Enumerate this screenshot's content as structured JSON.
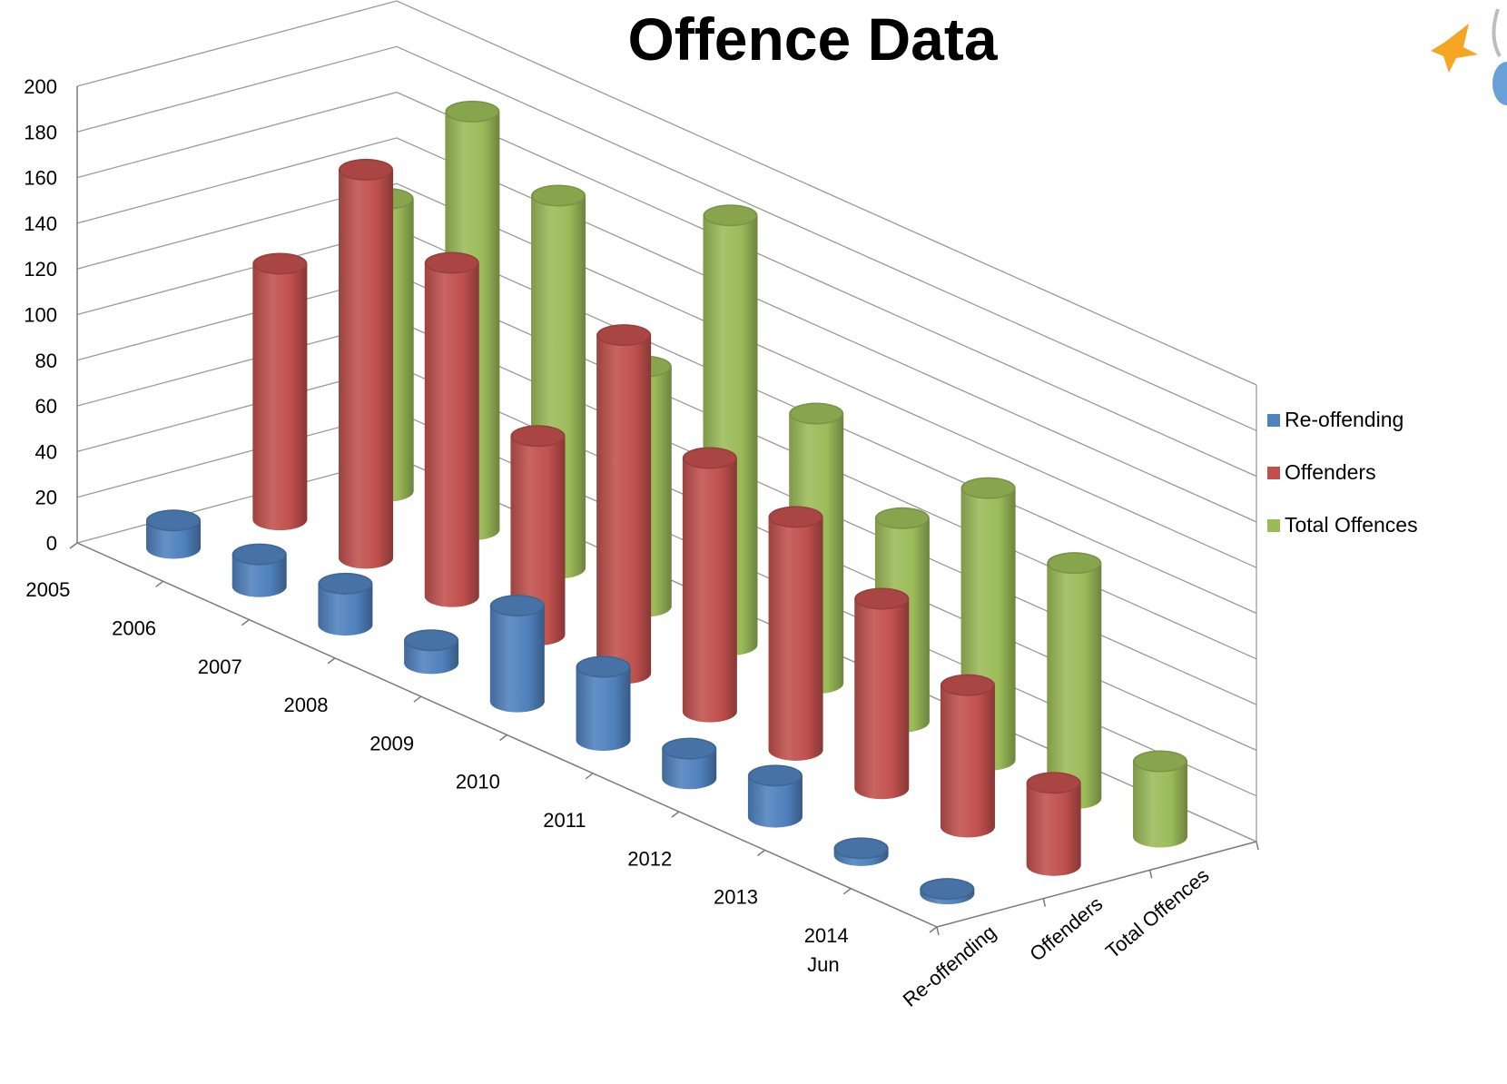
{
  "chart_data": {
    "type": "bar",
    "style": "3d-cylinder",
    "title": "Offence Data",
    "categories": [
      "2005",
      "2006",
      "2007",
      "2008",
      "2009",
      "2010",
      "2011",
      "2012",
      "2013",
      "2014 Jun"
    ],
    "series": [
      {
        "name": "Re-offending",
        "color": "#4f81bd",
        "values": [
          12,
          14,
          18,
          10,
          42,
          32,
          13,
          18,
          3,
          2
        ]
      },
      {
        "name": "Offenders",
        "color": "#c0504d",
        "values": [
          112,
          170,
          146,
          87,
          148,
          111,
          102,
          83,
          62,
          36
        ]
      },
      {
        "name": "Total Offences",
        "color": "#9bbb59",
        "values": [
          128,
          183,
          163,
          105,
          188,
          118,
          89,
          119,
          103,
          33
        ]
      }
    ],
    "ylim": [
      0,
      200
    ],
    "yticks": [
      0,
      20,
      40,
      60,
      80,
      100,
      120,
      140,
      160,
      180,
      200
    ],
    "grid": true,
    "legend": "right"
  }
}
